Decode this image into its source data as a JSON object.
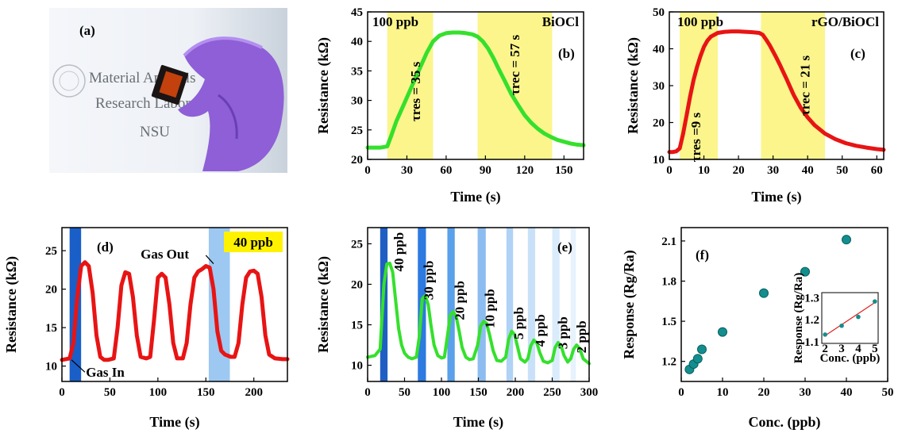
{
  "photo": {
    "label": "(a)",
    "text_lines": [
      "Material Analysis",
      "Research Laboratory",
      "NSU"
    ]
  },
  "colors": {
    "green": "#35e02c",
    "red": "#e81414",
    "yellow": "#fbf58c",
    "teal": "#138e8e"
  },
  "chart_data": [
    {
      "panel_label": "(b)",
      "type": "line",
      "title": "BiOCl",
      "annotation_top": "100 ppb",
      "annotation_res": "τres = 35 s",
      "annotation_rec": "τrec = 57 s",
      "xlabel": "Time (s)",
      "ylabel": "Resistance (kΩ)",
      "xlim": [
        0,
        165
      ],
      "ylim": [
        20,
        45
      ],
      "xticks": [
        0,
        30,
        60,
        90,
        120,
        150
      ],
      "yticks": [
        20,
        25,
        30,
        35,
        40,
        45
      ],
      "shaded": [
        [
          15,
          50
        ],
        [
          84,
          141
        ]
      ],
      "x": [
        0,
        5,
        10,
        15,
        18,
        22,
        26,
        30,
        35,
        40,
        45,
        50,
        55,
        60,
        65,
        70,
        75,
        80,
        84,
        88,
        92,
        96,
        100,
        105,
        110,
        115,
        120,
        125,
        130,
        135,
        140,
        145,
        150,
        155,
        160,
        165
      ],
      "y": [
        22,
        22,
        22,
        22.2,
        24,
        26.5,
        28.5,
        30.5,
        33,
        35.5,
        38,
        40,
        41,
        41.4,
        41.5,
        41.5,
        41.4,
        41.2,
        40.8,
        40,
        38.8,
        37.2,
        35.4,
        33.2,
        31,
        29.2,
        27.5,
        26.2,
        25.2,
        24.4,
        23.8,
        23.3,
        23,
        22.7,
        22.5,
        22.4
      ]
    },
    {
      "panel_label": "(c)",
      "type": "line",
      "title": "rGO/BiOCl",
      "annotation_top": "100 ppb",
      "annotation_res": "τres =9 s",
      "annotation_rec": "τrec = 21 s",
      "xlabel": "Time (s)",
      "ylabel": "Resistance (kΩ)",
      "xlim": [
        0,
        62
      ],
      "ylim": [
        10,
        50
      ],
      "xticks": [
        0,
        10,
        20,
        30,
        40,
        50,
        60
      ],
      "yticks": [
        10,
        20,
        30,
        40,
        50
      ],
      "shaded": [
        [
          3,
          14
        ],
        [
          26.5,
          45
        ]
      ],
      "x": [
        0,
        1,
        2,
        3,
        4,
        5,
        6,
        7,
        8,
        9,
        10,
        11,
        12,
        14,
        16,
        18,
        20,
        22,
        24,
        26,
        27,
        28,
        29,
        30,
        31,
        32,
        33,
        34,
        35,
        36,
        38,
        40,
        42,
        45,
        48,
        51,
        54,
        57,
        60,
        62
      ],
      "y": [
        12,
        12,
        12.2,
        13,
        17,
        22,
        27,
        31.5,
        35,
        38,
        40.5,
        42.2,
        43.3,
        44.3,
        44.6,
        44.7,
        44.7,
        44.6,
        44.5,
        44.3,
        43.8,
        42.5,
        41,
        39.3,
        37.5,
        35.6,
        33.6,
        31.6,
        29.5,
        27.4,
        24,
        21.4,
        19.3,
        17,
        15.5,
        14.4,
        13.7,
        13.2,
        12.8,
        12.6
      ]
    },
    {
      "panel_label": "(d)",
      "type": "line",
      "annotation_conc": "40 ppb",
      "annotation_in": "Gas In",
      "annotation_out": "Gas Out",
      "xlabel": "Time (s)",
      "ylabel": "Resistance (kΩ)",
      "xlim": [
        0,
        235
      ],
      "ylim": [
        8,
        28
      ],
      "xticks": [
        0,
        50,
        100,
        150,
        200
      ],
      "yticks": [
        10,
        15,
        20,
        25
      ],
      "shaded_dark": [
        8,
        20
      ],
      "shaded_light": [
        153,
        175
      ],
      "x": [
        0,
        8,
        12,
        16,
        20,
        24,
        28,
        32,
        36,
        40,
        44,
        48,
        54,
        58,
        62,
        66,
        70,
        74,
        78,
        82,
        88,
        92,
        96,
        100,
        104,
        108,
        112,
        116,
        120,
        126,
        130,
        134,
        138,
        142,
        146,
        150,
        154,
        158,
        162,
        166,
        170,
        176,
        180,
        184,
        188,
        192,
        196,
        200,
        204,
        208,
        212,
        216,
        222,
        230,
        235
      ],
      "y": [
        10.8,
        11,
        13,
        19,
        23,
        23.5,
        23,
        19.5,
        14,
        11.2,
        10.8,
        10.8,
        11,
        15,
        20.5,
        22.2,
        22,
        19,
        14,
        11.2,
        11,
        11.2,
        16,
        21.5,
        22,
        21.5,
        18,
        13,
        11,
        11,
        13,
        18,
        21.5,
        22.3,
        22.6,
        23,
        22.8,
        20,
        14.5,
        12,
        11.5,
        11.2,
        11.2,
        13,
        18,
        21.5,
        22.3,
        22.4,
        22,
        19,
        14,
        11.5,
        11,
        10.9,
        10.9
      ]
    },
    {
      "panel_label": "(e)",
      "type": "line",
      "xlabel": "Time (s)",
      "ylabel": "Resistance (kΩ)",
      "xlim": [
        0,
        300
      ],
      "ylim": [
        8,
        27
      ],
      "xticks": [
        0,
        50,
        100,
        150,
        200,
        250,
        300
      ],
      "yticks": [
        10,
        15,
        20,
        25
      ],
      "bands": [
        [
          17,
          27,
          "#1f5fc4"
        ],
        [
          68,
          79,
          "#2d7ae0"
        ],
        [
          108,
          118,
          "#5aa0ea"
        ],
        [
          149,
          160,
          "#8cbcf0"
        ],
        [
          188,
          197,
          "#b0d2f5"
        ],
        [
          217,
          227,
          "#c9e1f8"
        ],
        [
          250,
          260,
          "#daecfb"
        ],
        [
          275,
          282,
          "#e6f2fc"
        ]
      ],
      "conc_labels": [
        "40 ppb",
        "30 ppb",
        "20 ppb",
        "10 ppb",
        "5 ppb",
        "4 ppb",
        "3 ppb",
        "2 ppb"
      ],
      "x": [
        0,
        10,
        17,
        22,
        26,
        30,
        34,
        38,
        42,
        46,
        50,
        55,
        60,
        66,
        70,
        74,
        78,
        82,
        86,
        90,
        95,
        100,
        104,
        108,
        112,
        116,
        120,
        124,
        128,
        133,
        138,
        143,
        149,
        153,
        157,
        161,
        165,
        170,
        175,
        181,
        187,
        191,
        195,
        199,
        203,
        207,
        213,
        217,
        221,
        225,
        229,
        233,
        238,
        244,
        250,
        254,
        258,
        262,
        266,
        271,
        275,
        279,
        283,
        287,
        292,
        300
      ],
      "y": [
        11,
        11.2,
        12,
        20,
        22.5,
        22.6,
        21.5,
        18,
        14.5,
        12.5,
        11.5,
        11,
        10.8,
        11,
        13.5,
        18.2,
        18.6,
        17.5,
        14.8,
        12.5,
        11.2,
        10.9,
        11,
        13.5,
        16.2,
        16.6,
        16,
        14.2,
        12.2,
        11,
        10.7,
        10.8,
        12.5,
        14.8,
        15.4,
        15.2,
        13.8,
        11.8,
        10.6,
        10.5,
        11,
        13.2,
        14.2,
        13.8,
        12.3,
        10.8,
        10.4,
        10.8,
        12.4,
        13.1,
        12.8,
        11.6,
        10.5,
        10.3,
        10.6,
        12.2,
        12.8,
        12.4,
        11.2,
        10.4,
        10.8,
        12,
        12.5,
        12.1,
        10.8,
        10.2
      ]
    },
    {
      "panel_label": "(f)",
      "type": "scatter",
      "xlabel": "Conc. (ppb)",
      "ylabel": "Response (Rg/Ra)",
      "xlim": [
        0,
        50
      ],
      "ylim": [
        1.05,
        2.2
      ],
      "xticks": [
        0,
        10,
        20,
        30,
        40,
        50
      ],
      "yticks": [
        1.2,
        1.5,
        1.8,
        2.1
      ],
      "x": [
        2,
        3,
        4,
        5,
        10,
        20,
        30,
        40
      ],
      "y": [
        1.14,
        1.18,
        1.22,
        1.29,
        1.42,
        1.71,
        1.87,
        2.11
      ],
      "inset": {
        "xlabel": "Conc. (ppb)",
        "ylabel": "Response (Rg/Ra)",
        "xlim": [
          1.8,
          5.2
        ],
        "ylim": [
          1.1,
          1.33
        ],
        "xticks": [
          2,
          3,
          4,
          5
        ],
        "yticks": [
          1.1,
          1.2,
          1.3
        ],
        "x": [
          2,
          3,
          4,
          5
        ],
        "y": [
          1.14,
          1.18,
          1.22,
          1.29
        ],
        "fit": [
          [
            2,
            1.135
          ],
          [
            5,
            1.285
          ]
        ]
      }
    }
  ]
}
